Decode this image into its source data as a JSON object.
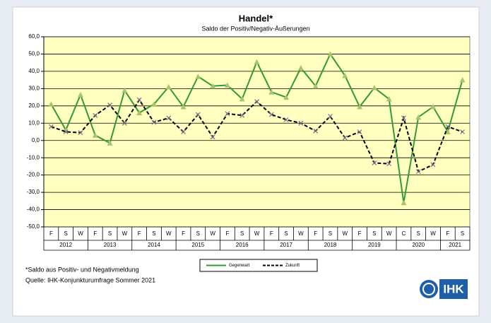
{
  "chart_data": {
    "type": "line",
    "title": "Handel*",
    "subtitle": "Saldo der Positiv/Negativ-Äußerungen",
    "groups": [
      {
        "label": "2012",
        "categories": [
          "F",
          "S",
          "W"
        ]
      },
      {
        "label": "2013",
        "categories": [
          "F",
          "S",
          "W"
        ]
      },
      {
        "label": "2014",
        "categories": [
          "F",
          "S",
          "W"
        ]
      },
      {
        "label": "2015",
        "categories": [
          "F",
          "S",
          "W"
        ]
      },
      {
        "label": "2016",
        "categories": [
          "F",
          "S",
          "W"
        ]
      },
      {
        "label": "2017",
        "categories": [
          "F",
          "S",
          "W"
        ]
      },
      {
        "label": "2018",
        "categories": [
          "F",
          "S",
          "W"
        ]
      },
      {
        "label": "2019",
        "categories": [
          "F",
          "S",
          "W"
        ]
      },
      {
        "label": "2020",
        "categories": [
          "C",
          "S",
          "W"
        ]
      },
      {
        "label": "2021",
        "categories": [
          "F",
          "S"
        ]
      }
    ],
    "series": [
      {
        "name": "Gegenwart",
        "color": "#339933",
        "marker_color": "#a9c46c",
        "values": [
          21,
          6,
          26.5,
          3,
          -1.5,
          29,
          16,
          21,
          31,
          19.5,
          37,
          31.5,
          32,
          24,
          45.5,
          28,
          25,
          42,
          31.5,
          50,
          37.5,
          19.5,
          30.5,
          24,
          -36,
          13.5,
          19.5,
          5,
          35
        ]
      },
      {
        "name": "Zukunft",
        "color": "#000000",
        "marker_color": "#7a6a8a",
        "dashed": true,
        "values": [
          8,
          5,
          4.5,
          14.5,
          20.5,
          10,
          23.5,
          10.5,
          13,
          5,
          15,
          2,
          15.5,
          14.5,
          22.5,
          15,
          12,
          10,
          5.5,
          14,
          1.5,
          5,
          -13,
          -13.5,
          13,
          -18,
          -14,
          8,
          5
        ]
      }
    ],
    "ylim": [
      -50,
      60
    ],
    "yticks": [
      {
        "value": -50,
        "label": "-50,0"
      },
      {
        "value": -40,
        "label": "-40,0"
      },
      {
        "value": -30,
        "label": "-30,0"
      },
      {
        "value": -20,
        "label": "-20,0"
      },
      {
        "value": -10,
        "label": "-10,0"
      },
      {
        "value": 0,
        "label": "0,0"
      },
      {
        "value": 10,
        "label": "10,0"
      },
      {
        "value": 20,
        "label": "20,0"
      },
      {
        "value": 30,
        "label": "30,0"
      },
      {
        "value": 40,
        "label": "40,0"
      },
      {
        "value": 50,
        "label": "50,0"
      },
      {
        "value": 60,
        "label": "60,0"
      }
    ],
    "grid": true,
    "notes": [
      "*Saldo aus Positiv- und Negativmeldung",
      "Quelle: IHK-Konjunkturumfrage Sommer 2021"
    ],
    "logo": "IHK"
  }
}
